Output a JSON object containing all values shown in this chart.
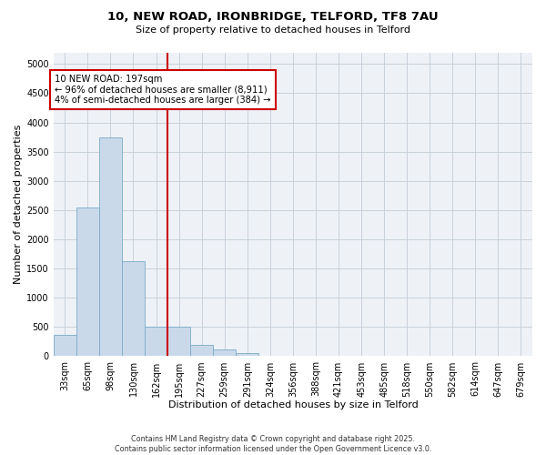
{
  "title_line1": "10, NEW ROAD, IRONBRIDGE, TELFORD, TF8 7AU",
  "title_line2": "Size of property relative to detached houses in Telford",
  "xlabel": "Distribution of detached houses by size in Telford",
  "ylabel": "Number of detached properties",
  "categories": [
    "33sqm",
    "65sqm",
    "98sqm",
    "130sqm",
    "162sqm",
    "195sqm",
    "227sqm",
    "259sqm",
    "291sqm",
    "324sqm",
    "356sqm",
    "388sqm",
    "421sqm",
    "453sqm",
    "485sqm",
    "518sqm",
    "550sqm",
    "582sqm",
    "614sqm",
    "647sqm",
    "679sqm"
  ],
  "bar_values": [
    370,
    2550,
    3750,
    1620,
    500,
    500,
    195,
    110,
    60,
    0,
    0,
    0,
    0,
    0,
    0,
    0,
    0,
    0,
    0,
    0,
    0
  ],
  "bar_color": "#c9d9ea",
  "bar_edge_color": "#7baac8",
  "vline_index": 5,
  "vline_color": "#cc0000",
  "annotation_title": "10 NEW ROAD: 197sqm",
  "annotation_line2": "← 96% of detached houses are smaller (8,911)",
  "annotation_line3": "4% of semi-detached houses are larger (384) →",
  "annotation_box_color": "#cc0000",
  "ylim": [
    0,
    5200
  ],
  "yticks": [
    0,
    500,
    1000,
    1500,
    2000,
    2500,
    3000,
    3500,
    4000,
    4500,
    5000
  ],
  "footer_line1": "Contains HM Land Registry data © Crown copyright and database right 2025.",
  "footer_line2": "Contains public sector information licensed under the Open Government Licence v3.0.",
  "bg_color": "#ffffff",
  "plot_bg_color": "#eef2f7",
  "grid_color": "#c8d0da"
}
